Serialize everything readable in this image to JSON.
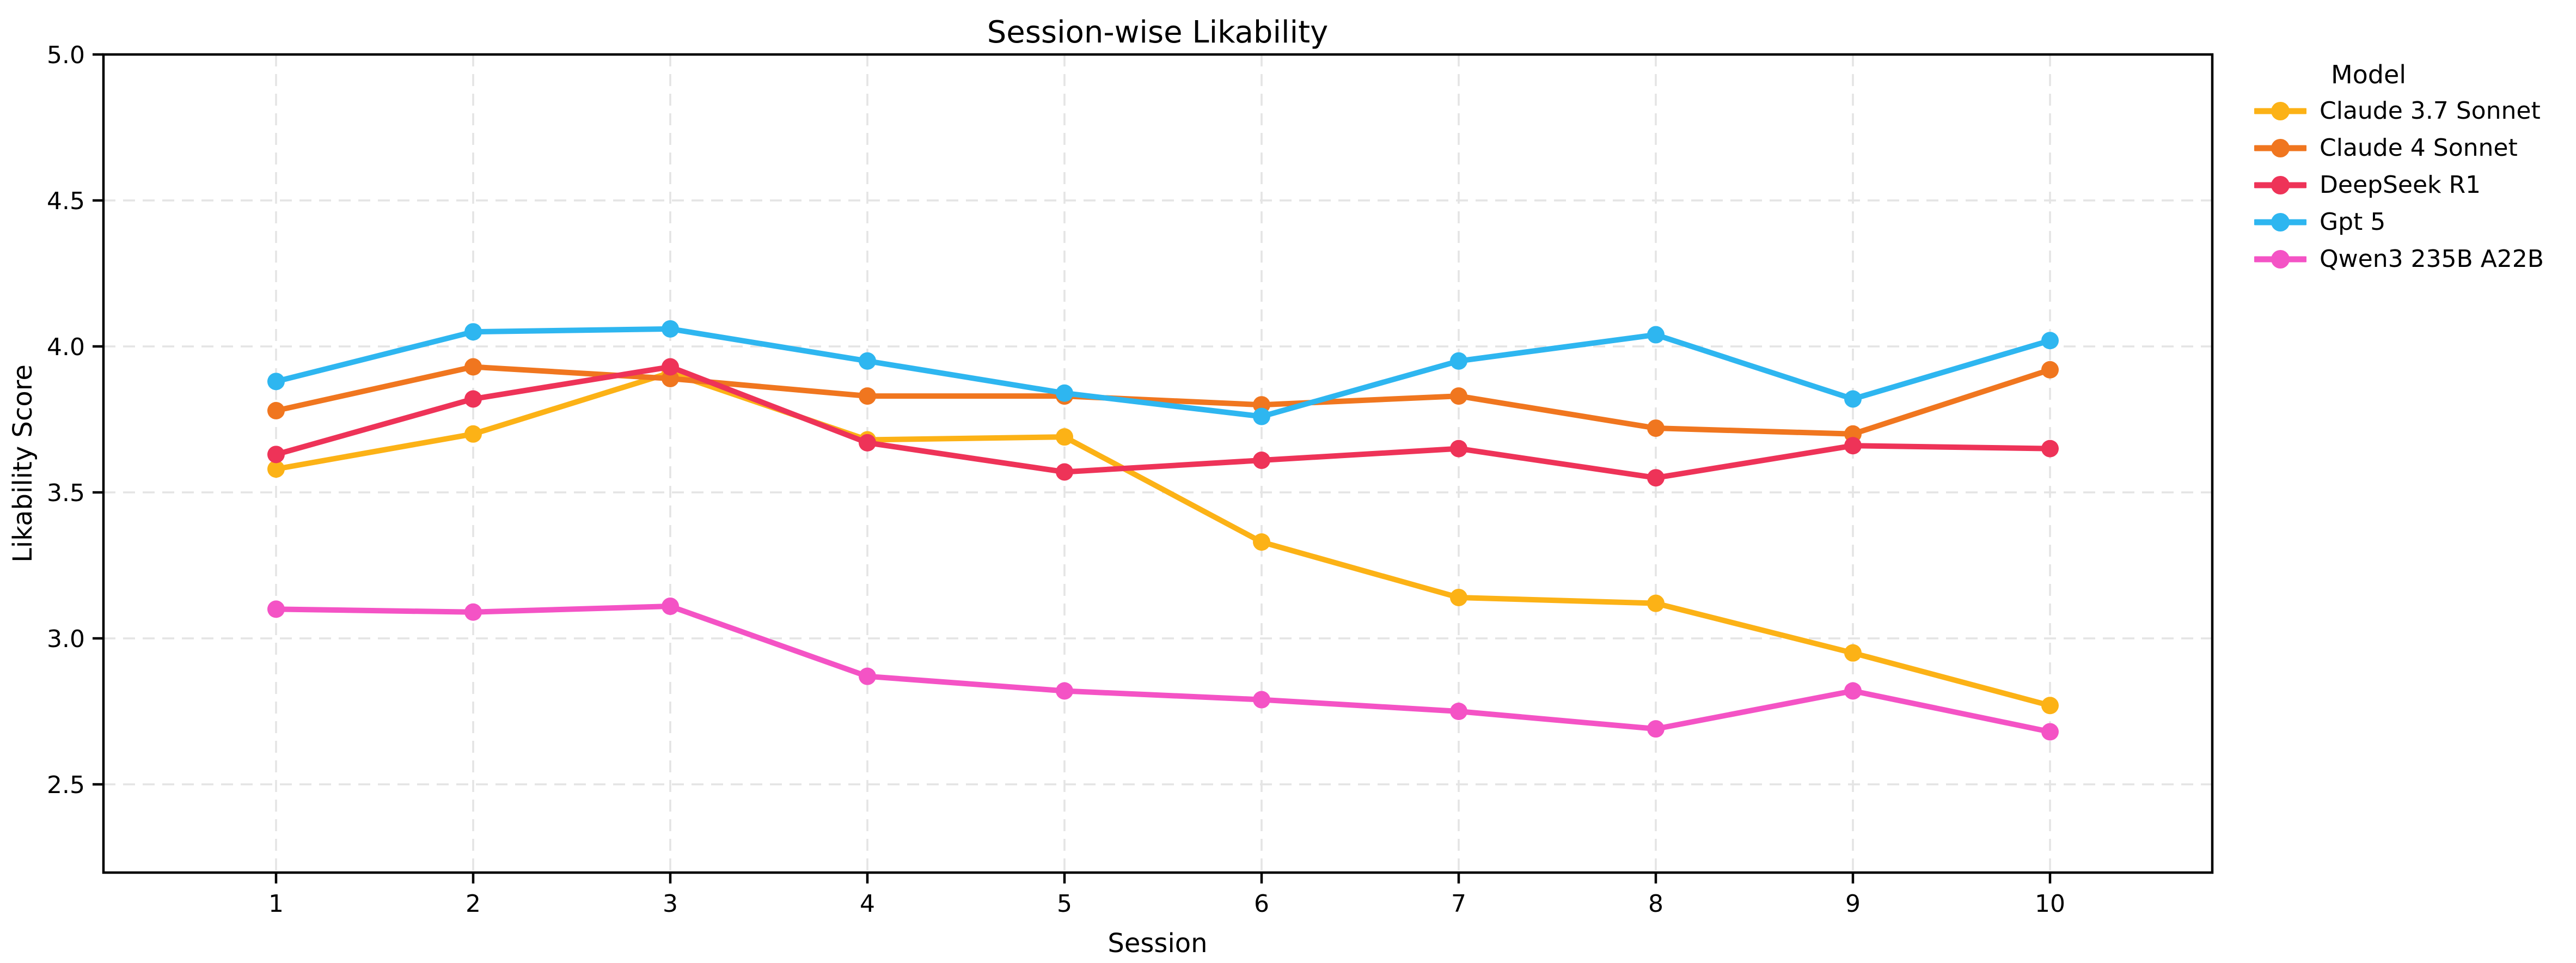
{
  "chart_data": {
    "type": "line",
    "title": "Session-wise Likability",
    "xlabel": "Session",
    "ylabel": "Likability Score",
    "legend_title": "Model",
    "legend_position": "right",
    "grid": true,
    "categories": [
      1,
      2,
      3,
      4,
      5,
      6,
      7,
      8,
      9,
      10
    ],
    "yticks": [
      2.5,
      3.0,
      3.5,
      4.0,
      4.5,
      5.0
    ],
    "ylim": [
      2.2,
      5.0
    ],
    "xlim": [
      0.12,
      10.82
    ],
    "series": [
      {
        "name": "Claude 3.7 Sonnet",
        "color": "#FCB216",
        "values": [
          3.58,
          3.7,
          3.91,
          3.68,
          3.69,
          3.33,
          3.14,
          3.12,
          2.95,
          2.77
        ]
      },
      {
        "name": "Claude 4 Sonnet",
        "color": "#F0761F",
        "values": [
          3.78,
          3.93,
          3.89,
          3.83,
          3.83,
          3.8,
          3.83,
          3.72,
          3.7,
          3.92
        ]
      },
      {
        "name": "DeepSeek R1",
        "color": "#EE3358",
        "values": [
          3.63,
          3.82,
          3.93,
          3.67,
          3.57,
          3.61,
          3.65,
          3.55,
          3.66,
          3.65
        ]
      },
      {
        "name": "Gpt 5",
        "color": "#2EB6F0",
        "values": [
          3.88,
          4.05,
          4.06,
          3.95,
          3.84,
          3.76,
          3.95,
          4.04,
          3.82,
          4.02
        ]
      },
      {
        "name": "Qwen3 235B A22B",
        "color": "#F453C5",
        "values": [
          3.1,
          3.09,
          3.11,
          2.87,
          2.82,
          2.79,
          2.75,
          2.69,
          2.82,
          2.68
        ]
      }
    ]
  }
}
